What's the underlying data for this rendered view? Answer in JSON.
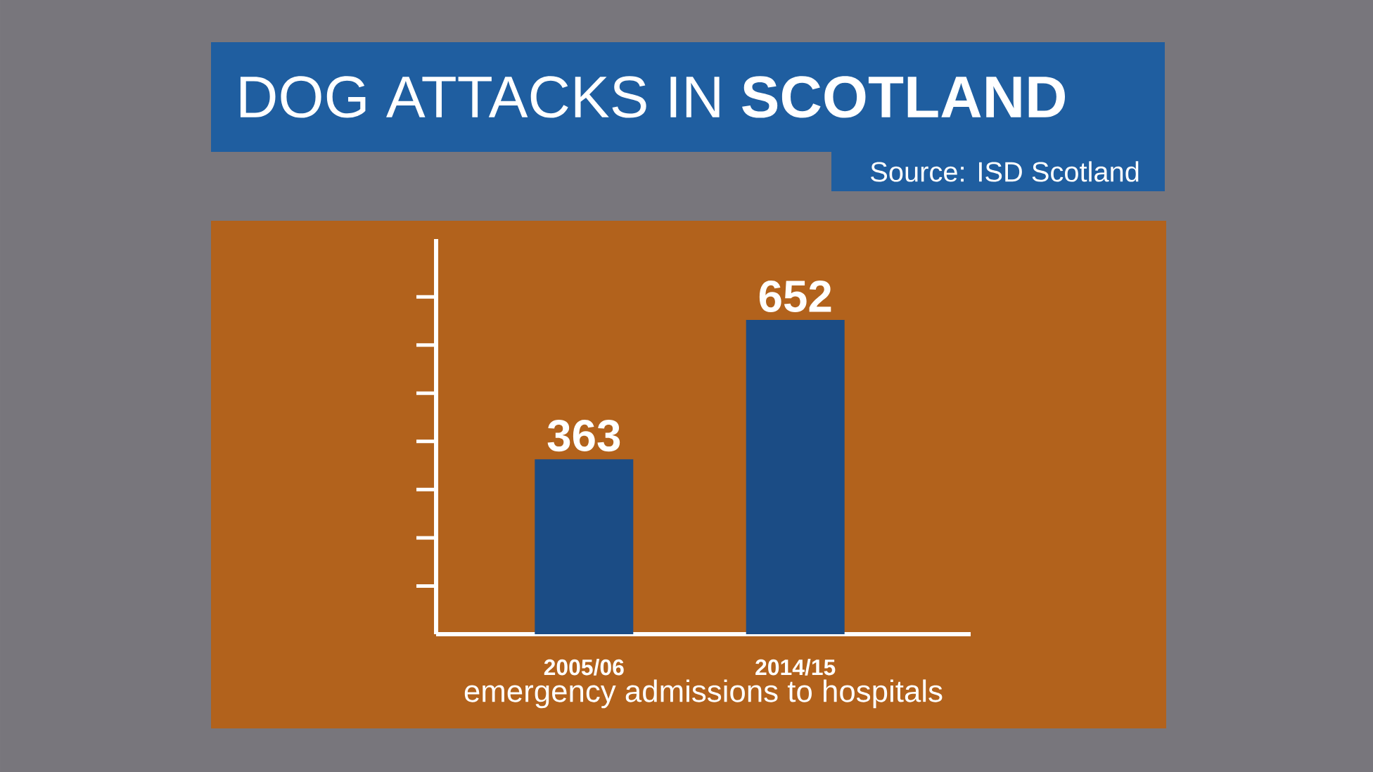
{
  "chart_data": {
    "type": "bar",
    "title": "DOG ATTACKS IN **SCOTLAND**",
    "xlabel": "emergency admissions to hospitals",
    "annotations": [
      "Source: ISD Scotland"
    ],
    "categories": [
      "2005/06",
      "2014/15"
    ],
    "values": [
      363,
      652
    ],
    "color": "#1b4c85",
    "ylim": [
      0,
      820
    ],
    "yticks": [
      {
        "value": 100,
        "label": null
      },
      {
        "value": 200,
        "label": null
      },
      {
        "value": 300,
        "label": null
      },
      {
        "value": 400,
        "label": null
      },
      {
        "value": 500,
        "label": null
      },
      {
        "value": 600,
        "label": null
      },
      {
        "value": 700,
        "label": null
      }
    ],
    "data_labels": true
  }
}
